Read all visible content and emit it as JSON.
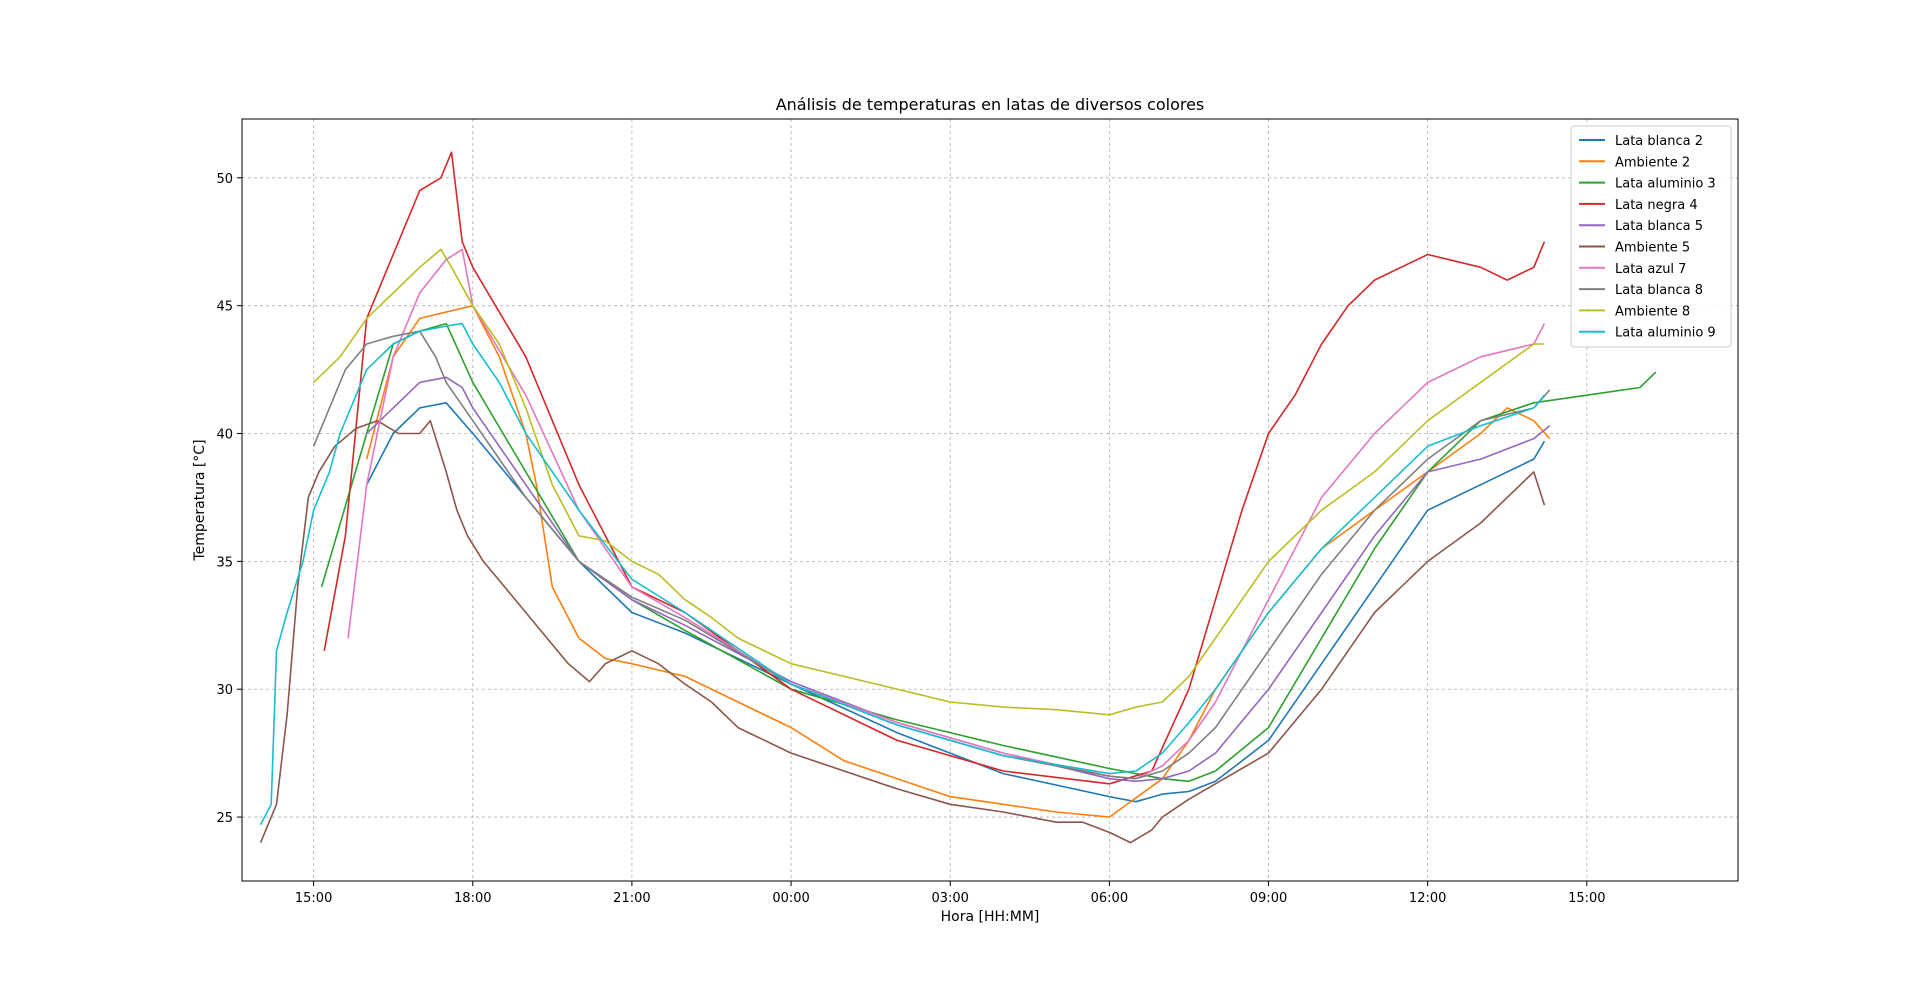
{
  "chart_data": {
    "type": "line",
    "title": "Análisis de temperaturas en latas de diversos colores",
    "xlabel": "Hora [HH:MM]",
    "ylabel": "Temperatura [°C]",
    "x_unit": "hours since 00:00 of first day (negative = previous day)",
    "xlim": [
      -10.35,
      17.85
    ],
    "ylim": [
      22.5,
      52.3
    ],
    "x_ticks": [
      {
        "value": -9,
        "label": "15:00"
      },
      {
        "value": -6,
        "label": "18:00"
      },
      {
        "value": -3,
        "label": "21:00"
      },
      {
        "value": 0,
        "label": "00:00"
      },
      {
        "value": 3,
        "label": "03:00"
      },
      {
        "value": 6,
        "label": "06:00"
      },
      {
        "value": 9,
        "label": "09:00"
      },
      {
        "value": 12,
        "label": "12:00"
      },
      {
        "value": 15,
        "label": "15:00"
      }
    ],
    "y_ticks": [
      {
        "value": 25,
        "label": "25"
      },
      {
        "value": 30,
        "label": "30"
      },
      {
        "value": 35,
        "label": "35"
      },
      {
        "value": 40,
        "label": "40"
      },
      {
        "value": 45,
        "label": "45"
      },
      {
        "value": 50,
        "label": "50"
      }
    ],
    "grid": true,
    "legend_position": "top-right",
    "series": [
      {
        "name": "Lata blanca 2",
        "color": "#1f77b4",
        "x": [
          -8.0,
          -7.5,
          -7.0,
          -6.5,
          -6.0,
          -5.0,
          -4.0,
          -3.0,
          -2.0,
          0.0,
          2.0,
          4.0,
          6.0,
          6.5,
          7.0,
          7.5,
          8.0,
          9.0,
          10.0,
          11.0,
          12.0,
          13.0,
          14.0,
          14.2
        ],
        "y": [
          38.0,
          40.0,
          41.0,
          41.2,
          40.0,
          37.5,
          35.0,
          33.0,
          32.2,
          30.2,
          28.3,
          26.7,
          25.8,
          25.6,
          25.9,
          26.0,
          26.4,
          28.0,
          31.0,
          34.0,
          37.0,
          38.0,
          39.0,
          39.7
        ]
      },
      {
        "name": "Ambiente 2",
        "color": "#ff7f0e",
        "x": [
          -8.0,
          -7.5,
          -7.0,
          -6.0,
          -5.5,
          -5.0,
          -4.8,
          -4.5,
          -4.0,
          -3.5,
          -3.0,
          -2.0,
          -1.0,
          0.0,
          1.0,
          2.0,
          3.0,
          4.0,
          5.0,
          6.0,
          7.0,
          7.5,
          8.0,
          8.5,
          9.0,
          10.0,
          11.0,
          12.0,
          13.0,
          13.5,
          14.0,
          14.3
        ],
        "y": [
          39.0,
          43.0,
          44.5,
          45.0,
          43.0,
          40.0,
          38.0,
          34.0,
          32.0,
          31.2,
          31.0,
          30.5,
          29.5,
          28.5,
          27.2,
          26.5,
          25.8,
          25.5,
          25.2,
          25.0,
          26.5,
          28.0,
          30.0,
          31.5,
          33.0,
          35.5,
          37.0,
          38.5,
          40.0,
          41.0,
          40.5,
          39.8
        ]
      },
      {
        "name": "Lata aluminio 3",
        "color": "#2ca02c",
        "x": [
          -8.85,
          -8.0,
          -7.5,
          -7.0,
          -6.5,
          -6.0,
          -5.0,
          -4.0,
          -3.0,
          -2.0,
          0.0,
          2.0,
          4.0,
          6.0,
          7.0,
          7.5,
          8.0,
          9.0,
          10.0,
          11.0,
          12.0,
          13.0,
          14.0,
          15.0,
          16.0,
          16.3
        ],
        "y": [
          34.0,
          40.0,
          43.5,
          44.0,
          44.3,
          42.0,
          38.5,
          35.0,
          33.5,
          32.3,
          30.0,
          28.8,
          27.8,
          26.9,
          26.5,
          26.4,
          26.8,
          28.5,
          32.0,
          35.5,
          38.5,
          40.5,
          41.2,
          41.5,
          41.8,
          42.4
        ]
      },
      {
        "name": "Lata negra 4",
        "color": "#d62728",
        "x": [
          -8.8,
          -8.4,
          -8.0,
          -7.5,
          -7.0,
          -6.6,
          -6.4,
          -6.2,
          -6.0,
          -5.0,
          -4.0,
          -3.0,
          -2.0,
          0.0,
          2.0,
          4.0,
          6.0,
          6.8,
          7.5,
          8.0,
          8.5,
          9.0,
          9.5,
          10.0,
          10.5,
          11.0,
          11.5,
          12.0,
          13.0,
          13.5,
          14.0,
          14.2
        ],
        "y": [
          31.5,
          36.0,
          44.5,
          47.0,
          49.5,
          50.0,
          51.0,
          47.5,
          46.5,
          43.0,
          38.0,
          34.0,
          33.0,
          30.0,
          28.0,
          26.8,
          26.3,
          26.8,
          30.0,
          33.5,
          37.0,
          40.0,
          41.5,
          43.5,
          45.0,
          46.0,
          46.5,
          47.0,
          46.5,
          46.0,
          46.5,
          47.5
        ]
      },
      {
        "name": "Lata blanca 5",
        "color": "#9467bd",
        "x": [
          -8.0,
          -7.5,
          -7.0,
          -6.5,
          -6.2,
          -6.0,
          -5.0,
          -4.0,
          -3.0,
          -2.0,
          0.0,
          2.0,
          4.0,
          6.0,
          6.5,
          7.0,
          7.5,
          8.0,
          9.0,
          10.0,
          11.0,
          12.0,
          13.0,
          14.0,
          14.3
        ],
        "y": [
          40.0,
          41.0,
          42.0,
          42.2,
          41.8,
          41.0,
          38.0,
          35.0,
          33.5,
          32.5,
          30.3,
          28.7,
          27.5,
          26.5,
          26.4,
          26.5,
          26.8,
          27.5,
          30.0,
          33.0,
          36.0,
          38.5,
          39.0,
          39.8,
          40.3
        ]
      },
      {
        "name": "Ambiente 5",
        "color": "#8c564b",
        "x": [
          -10.0,
          -9.7,
          -9.5,
          -9.3,
          -9.1,
          -8.9,
          -8.6,
          -8.2,
          -7.8,
          -7.4,
          -7.0,
          -6.8,
          -6.5,
          -6.3,
          -6.1,
          -5.8,
          -5.4,
          -5.0,
          -4.6,
          -4.2,
          -3.8,
          -3.5,
          -3.0,
          -2.5,
          -2.0,
          -1.5,
          -1.0,
          0.0,
          1.0,
          2.0,
          3.0,
          4.0,
          5.0,
          5.5,
          6.0,
          6.4,
          6.8,
          7.0,
          7.5,
          8.0,
          9.0,
          10.0,
          11.0,
          12.0,
          13.0,
          13.5,
          14.0,
          14.2
        ],
        "y": [
          24.0,
          25.5,
          29.0,
          34.0,
          37.5,
          38.5,
          39.5,
          40.2,
          40.5,
          40.0,
          40.0,
          40.5,
          38.5,
          37.0,
          36.0,
          35.0,
          34.0,
          33.0,
          32.0,
          31.0,
          30.3,
          31.0,
          31.5,
          31.0,
          30.2,
          29.5,
          28.5,
          27.5,
          26.8,
          26.1,
          25.5,
          25.2,
          24.8,
          24.8,
          24.4,
          24.0,
          24.5,
          25.0,
          25.7,
          26.3,
          27.5,
          30.0,
          33.0,
          35.0,
          36.5,
          37.5,
          38.5,
          37.2
        ]
      },
      {
        "name": "Lata azul 7",
        "color": "#e377c2",
        "x": [
          -8.35,
          -8.0,
          -7.5,
          -7.0,
          -6.5,
          -6.2,
          -6.0,
          -5.0,
          -4.0,
          -3.0,
          -2.0,
          0.0,
          2.0,
          4.0,
          6.0,
          6.5,
          7.0,
          7.5,
          8.0,
          9.0,
          10.0,
          11.0,
          12.0,
          13.0,
          14.0,
          14.2
        ],
        "y": [
          32.0,
          38.0,
          43.0,
          45.5,
          46.8,
          47.2,
          45.0,
          41.5,
          37.0,
          34.0,
          32.8,
          30.2,
          28.7,
          27.5,
          26.6,
          26.5,
          27.0,
          28.0,
          29.5,
          33.5,
          37.5,
          40.0,
          42.0,
          43.0,
          43.5,
          44.3
        ]
      },
      {
        "name": "Lata blanca 8",
        "color": "#7f7f7f",
        "x": [
          -9.0,
          -8.7,
          -8.4,
          -8.0,
          -7.5,
          -7.0,
          -6.7,
          -6.5,
          -6.0,
          -5.0,
          -4.0,
          -3.0,
          -2.0,
          0.0,
          2.0,
          4.0,
          6.0,
          6.5,
          7.0,
          7.5,
          8.0,
          9.0,
          10.0,
          11.0,
          12.0,
          13.0,
          14.0,
          14.3
        ],
        "y": [
          39.5,
          41.0,
          42.5,
          43.5,
          43.8,
          44.0,
          43.0,
          42.0,
          40.5,
          37.5,
          35.0,
          33.6,
          32.7,
          30.2,
          28.6,
          27.4,
          26.6,
          26.5,
          26.8,
          27.5,
          28.5,
          31.5,
          34.5,
          37.0,
          39.0,
          40.5,
          41.0,
          41.7
        ]
      },
      {
        "name": "Ambiente 8",
        "color": "#bcbd22",
        "x": [
          -9.0,
          -8.5,
          -8.0,
          -7.5,
          -7.0,
          -6.6,
          -6.4,
          -6.0,
          -5.5,
          -5.0,
          -4.5,
          -4.0,
          -3.5,
          -3.0,
          -2.5,
          -2.0,
          -1.5,
          -1.0,
          -0.5,
          0.0,
          1.0,
          2.0,
          3.0,
          4.0,
          5.0,
          6.0,
          6.5,
          7.0,
          7.5,
          8.0,
          8.5,
          9.0,
          10.0,
          11.0,
          12.0,
          13.0,
          14.0,
          14.2
        ],
        "y": [
          42.0,
          43.0,
          44.5,
          45.5,
          46.5,
          47.2,
          46.5,
          45.0,
          43.5,
          41.0,
          38.0,
          36.0,
          35.8,
          35.0,
          34.5,
          33.5,
          32.8,
          32.0,
          31.5,
          31.0,
          30.5,
          30.0,
          29.5,
          29.3,
          29.2,
          29.0,
          29.3,
          29.5,
          30.5,
          32.0,
          33.5,
          35.0,
          37.0,
          38.5,
          40.5,
          42.0,
          43.5,
          43.5
        ]
      },
      {
        "name": "Lata aluminio 9",
        "color": "#17becf",
        "x": [
          -10.0,
          -9.8,
          -9.7,
          -9.5,
          -9.2,
          -9.0,
          -8.7,
          -8.5,
          -8.2,
          -8.0,
          -7.5,
          -7.0,
          -6.5,
          -6.2,
          -6.0,
          -5.5,
          -5.0,
          -4.0,
          -3.0,
          -2.0,
          0.0,
          2.0,
          4.0,
          6.0,
          6.5,
          7.0,
          7.5,
          8.0,
          9.0,
          10.0,
          11.0,
          12.0,
          13.0,
          14.0,
          14.2
        ],
        "y": [
          24.7,
          25.5,
          31.5,
          33.0,
          35.0,
          37.0,
          38.5,
          40.0,
          41.5,
          42.5,
          43.5,
          44.0,
          44.2,
          44.3,
          43.5,
          42.0,
          40.0,
          37.0,
          34.3,
          33.0,
          30.2,
          28.6,
          27.4,
          26.7,
          26.8,
          27.5,
          28.7,
          30.0,
          33.0,
          35.5,
          37.5,
          39.5,
          40.3,
          41.0,
          41.5
        ]
      }
    ]
  }
}
